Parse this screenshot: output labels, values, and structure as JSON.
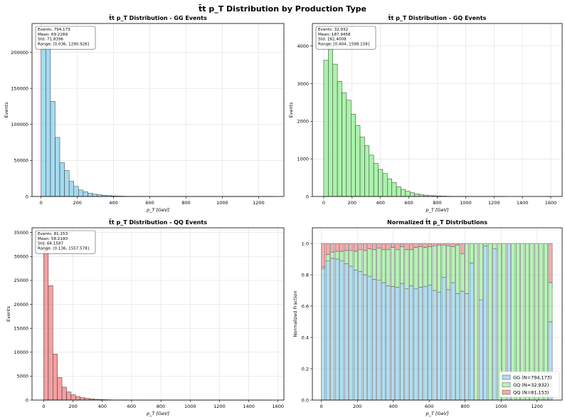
{
  "suptitle": "t̄t  p_T Distribution by Production Type",
  "chart_data": [
    {
      "id": "gg",
      "type": "bar",
      "title": "t̄t  p_T Distribution - GG Events",
      "xlabel": "p_T [GeV]",
      "ylabel": "Events",
      "xlim": [
        -50,
        1340
      ],
      "ylim": [
        0,
        240000
      ],
      "xticks": [
        0,
        200,
        400,
        600,
        800,
        1000,
        1200
      ],
      "yticks": [
        0,
        50000,
        100000,
        150000,
        200000
      ],
      "bin_width": 25.8,
      "color": "#87ceeb",
      "bins_start": 0.036,
      "values": [
        205000,
        212000,
        132000,
        82000,
        47000,
        36000,
        21000,
        14000,
        9000,
        6500,
        4500,
        3200,
        2300,
        1700,
        1200,
        800,
        550,
        380,
        250,
        170,
        120,
        80,
        55,
        40,
        28,
        20,
        14,
        10,
        7,
        5,
        4,
        3,
        2,
        2,
        1,
        1,
        1,
        1,
        1,
        1,
        1,
        1,
        1,
        1,
        1,
        1,
        1,
        1,
        1,
        1
      ],
      "stats": [
        "Events: 794,173",
        "Mean: 69.2289",
        "Std: 71.8396",
        "Range: [0.036, 1290.926]"
      ]
    },
    {
      "id": "gq",
      "type": "bar",
      "title": "t̄t  p_T Distribution - GQ Events",
      "xlabel": "p_T [GeV]",
      "ylabel": "Events",
      "xlim": [
        -80,
        1680
      ],
      "ylim": [
        0,
        4600
      ],
      "xticks": [
        0,
        200,
        400,
        600,
        800,
        1000,
        1200,
        1400,
        1600
      ],
      "yticks": [
        0,
        1000,
        2000,
        3000,
        4000
      ],
      "bin_width": 32,
      "color": "#90ee90",
      "bins_start": 0.404,
      "values": [
        3620,
        4330,
        3520,
        3060,
        2760,
        2560,
        2190,
        1890,
        1580,
        1350,
        1100,
        880,
        720,
        610,
        470,
        370,
        260,
        190,
        140,
        100,
        70,
        50,
        36,
        26,
        18,
        12,
        9,
        6,
        4,
        3,
        2,
        2,
        1,
        1,
        1,
        1,
        1,
        1,
        1,
        1,
        0,
        0,
        0,
        0,
        0,
        0,
        0,
        0,
        0,
        1
      ],
      "stats": [
        "Events: 32,932",
        "Mean: 187.9458",
        "Std: 161.4008",
        "Range: [0.404, 1598.158]"
      ]
    },
    {
      "id": "qq",
      "type": "bar",
      "title": "t̄t  p_T Distribution - QQ Events",
      "xlabel": "p_T [GeV]",
      "ylabel": "Events",
      "xlim": [
        -80,
        1640
      ],
      "ylim": [
        0,
        36000
      ],
      "xticks": [
        0,
        200,
        400,
        600,
        800,
        1000,
        1200,
        1400,
        1600
      ],
      "yticks": [
        0,
        5000,
        10000,
        15000,
        20000,
        25000,
        30000,
        35000
      ],
      "bin_width": 31.1,
      "color": "#f08080",
      "bins_start": 0.136,
      "values": [
        32500,
        23900,
        9600,
        4700,
        2700,
        1700,
        1100,
        750,
        520,
        360,
        250,
        170,
        120,
        80,
        55,
        38,
        26,
        18,
        12,
        8,
        6,
        4,
        3,
        2,
        2,
        1,
        1,
        1,
        1,
        1,
        1,
        1,
        1,
        1,
        1,
        1,
        1,
        1,
        1,
        1,
        1,
        1,
        1,
        1,
        1,
        1,
        1,
        1,
        1,
        1
      ],
      "stats": [
        "Events: 81,153",
        "Mean: 58.2190",
        "Std: 66.1587",
        "Range: [0.136, 1557.578]"
      ]
    },
    {
      "id": "norm",
      "type": "bar",
      "stacked": true,
      "title": "Normalized t̄t  p_T Distributions",
      "xlabel": "p_T [GeV]",
      "ylabel": "Normalized Fraction",
      "xlim": [
        -50,
        1340
      ],
      "ylim": [
        0,
        1.1
      ],
      "xticks": [
        0,
        200,
        400,
        600,
        800,
        1000,
        1200
      ],
      "yticks": [
        0.0,
        0.2,
        0.4,
        0.6,
        0.8,
        1.0
      ],
      "bin_width": 25.8,
      "legend_position": "lower-right",
      "series": [
        {
          "name": "GG (N=794,173)",
          "color": "#87ceeb",
          "values": [
            0.84,
            0.89,
            0.905,
            0.9,
            0.89,
            0.87,
            0.855,
            0.83,
            0.82,
            0.8,
            0.79,
            0.77,
            0.765,
            0.75,
            0.73,
            0.725,
            0.72,
            0.745,
            0.71,
            0.73,
            0.71,
            0.72,
            0.725,
            0.735,
            0.7,
            0.69,
            0.785,
            0.705,
            0.75,
            0.68,
            0.695,
            0.68,
            0.875,
            0.0,
            0.64,
            0.985,
            0.0,
            0.965,
            0.0,
            0.0,
            1.0,
            0.0,
            0.0,
            0.0,
            0.0,
            0.0,
            0.0,
            0.0,
            0.0,
            0.5
          ]
        },
        {
          "name": "GQ (N=32,932)",
          "color": "#90ee90",
          "values": [
            0.01,
            0.04,
            0.04,
            0.05,
            0.06,
            0.085,
            0.1,
            0.12,
            0.14,
            0.155,
            0.175,
            0.19,
            0.205,
            0.21,
            0.23,
            0.25,
            0.24,
            0.235,
            0.25,
            0.23,
            0.265,
            0.26,
            0.25,
            0.245,
            0.285,
            0.3,
            0.205,
            0.28,
            0.23,
            0.31,
            0.24,
            0.32,
            0.125,
            1.0,
            0.36,
            0.015,
            1.0,
            0.035,
            1.0,
            1.0,
            0.0,
            1.0,
            1.0,
            1.0,
            1.0,
            1.0,
            1.0,
            1.0,
            1.0,
            0.25
          ]
        },
        {
          "name": "QQ (N=81,153)",
          "color": "#f08080",
          "values": [
            0.15,
            0.07,
            0.055,
            0.05,
            0.05,
            0.045,
            0.045,
            0.05,
            0.04,
            0.045,
            0.035,
            0.04,
            0.03,
            0.04,
            0.04,
            0.025,
            0.04,
            0.02,
            0.04,
            0.04,
            0.025,
            0.02,
            0.025,
            0.02,
            0.015,
            0.01,
            0.01,
            0.015,
            0.02,
            0.01,
            0.065,
            0.0,
            0.0,
            0.0,
            0.0,
            0.0,
            0.0,
            0.0,
            0.0,
            0.0,
            0.0,
            0.0,
            0.0,
            0.0,
            0.0,
            0.0,
            0.0,
            0.0,
            0.0,
            0.25
          ]
        }
      ]
    }
  ]
}
